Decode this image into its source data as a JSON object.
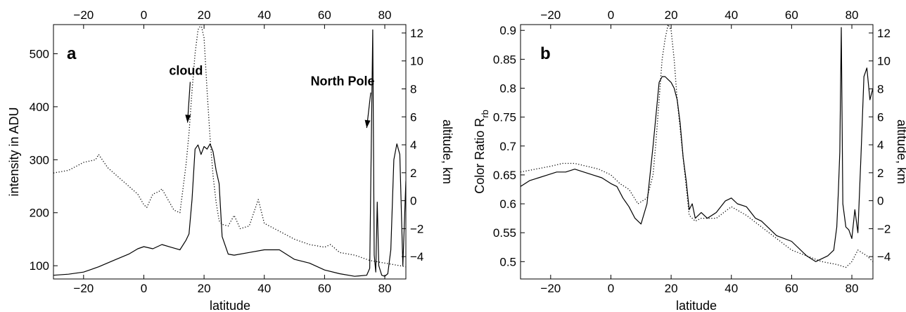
{
  "chart_data": [
    {
      "type": "line",
      "panel_label": "a",
      "xlabel": "latitude",
      "ylabel": "intensity in ADU",
      "y2label": "altitude, km",
      "xlim": [
        -30,
        87
      ],
      "ylim": [
        75,
        555
      ],
      "y2lim": [
        -5.6,
        12.6
      ],
      "xticks": [
        -20,
        0,
        20,
        40,
        60,
        80
      ],
      "xticks_top": [
        -20,
        0,
        20,
        40,
        60,
        80
      ],
      "yticks": [
        100,
        200,
        300,
        400,
        500
      ],
      "y2ticks": [
        -4,
        -2,
        0,
        2,
        4,
        6,
        8,
        10,
        12
      ],
      "annotations": [
        {
          "text": "cloud",
          "text_x": 14,
          "text_y": 460,
          "arrow_to_x": 14.5,
          "arrow_to_y": 370
        },
        {
          "text": "North Pole",
          "text_x": 66,
          "text_y": 440,
          "arrow_to_x": 74,
          "arrow_to_y": 360
        }
      ],
      "series": [
        {
          "style": "solid",
          "axis": "left",
          "x": [
            -30,
            -25,
            -20,
            -15,
            -10,
            -5,
            -2,
            0,
            3,
            6,
            9,
            12,
            14,
            15,
            16,
            17,
            18,
            19,
            20,
            21,
            22,
            23,
            24,
            25,
            26,
            28,
            30,
            35,
            40,
            45,
            50,
            55,
            60,
            65,
            70,
            74,
            75,
            76,
            76.5,
            77,
            77.5,
            78,
            79,
            80,
            81,
            82,
            83,
            84,
            85,
            86,
            87
          ],
          "y": [
            82,
            84,
            88,
            98,
            110,
            122,
            132,
            136,
            132,
            140,
            135,
            130,
            148,
            160,
            225,
            320,
            328,
            310,
            325,
            320,
            330,
            315,
            280,
            255,
            155,
            122,
            120,
            125,
            130,
            130,
            112,
            105,
            92,
            85,
            80,
            82,
            95,
            545,
            120,
            88,
            220,
            100,
            82,
            80,
            85,
            130,
            300,
            330,
            310,
            100,
            260
          ]
        },
        {
          "style": "dotted",
          "axis": "left",
          "x": [
            -30,
            -25,
            -20,
            -16,
            -15,
            -12,
            -8,
            -5,
            -2,
            0,
            1,
            3,
            5,
            6,
            8,
            10,
            12,
            14,
            15,
            16,
            17,
            18,
            19,
            20,
            21,
            22,
            23,
            24,
            25,
            26,
            28,
            30,
            32,
            35,
            38,
            40,
            45,
            50,
            55,
            60,
            62,
            65,
            70,
            75,
            80,
            85,
            87
          ],
          "y": [
            275,
            280,
            295,
            300,
            310,
            285,
            265,
            250,
            235,
            215,
            210,
            235,
            240,
            245,
            225,
            205,
            200,
            290,
            350,
            430,
            500,
            545,
            555,
            530,
            430,
            340,
            270,
            220,
            185,
            178,
            175,
            195,
            170,
            175,
            225,
            180,
            165,
            150,
            140,
            135,
            140,
            125,
            120,
            110,
            105,
            100,
            98
          ]
        }
      ]
    },
    {
      "type": "line",
      "panel_label": "b",
      "xlabel": "latitude",
      "ylabel": "Color Ratio R",
      "ylabel_sub": "rb",
      "y2label": "altitude, km",
      "xlim": [
        -30,
        87
      ],
      "ylim": [
        0.47,
        0.91
      ],
      "y2lim": [
        -5.6,
        12.6
      ],
      "xticks": [
        -20,
        0,
        20,
        40,
        60,
        80
      ],
      "xticks_top": [
        -20,
        0,
        20,
        40,
        60,
        80
      ],
      "yticks": [
        0.5,
        0.55,
        0.6,
        0.65,
        0.7,
        0.75,
        0.8,
        0.85,
        0.9
      ],
      "y2ticks": [
        -4,
        -2,
        0,
        2,
        4,
        6,
        8,
        10,
        12
      ],
      "series": [
        {
          "style": "solid",
          "axis": "left",
          "x": [
            -30,
            -27,
            -24,
            -21,
            -18,
            -15,
            -12,
            -9,
            -6,
            -3,
            0,
            2,
            4,
            6,
            8,
            10,
            12,
            14,
            16,
            17,
            18,
            19,
            20,
            21,
            22,
            23,
            24,
            25,
            26,
            27,
            28,
            30,
            32,
            35,
            38,
            40,
            42,
            45,
            48,
            50,
            55,
            60,
            65,
            68,
            70,
            72,
            74,
            75,
            75.5,
            76,
            76.5,
            77,
            78,
            79,
            80,
            81,
            82,
            83,
            84,
            85,
            86,
            87
          ],
          "y": [
            0.63,
            0.64,
            0.645,
            0.65,
            0.655,
            0.655,
            0.66,
            0.655,
            0.65,
            0.645,
            0.635,
            0.63,
            0.61,
            0.595,
            0.575,
            0.565,
            0.6,
            0.7,
            0.81,
            0.82,
            0.82,
            0.815,
            0.81,
            0.8,
            0.78,
            0.74,
            0.68,
            0.64,
            0.59,
            0.6,
            0.575,
            0.585,
            0.575,
            0.585,
            0.605,
            0.61,
            0.6,
            0.595,
            0.575,
            0.57,
            0.545,
            0.535,
            0.51,
            0.5,
            0.505,
            0.51,
            0.52,
            0.56,
            0.62,
            0.69,
            0.905,
            0.6,
            0.56,
            0.555,
            0.54,
            0.59,
            0.55,
            0.68,
            0.82,
            0.835,
            0.78,
            0.8
          ]
        },
        {
          "style": "dotted",
          "axis": "left",
          "x": [
            -30,
            -25,
            -20,
            -16,
            -12,
            -8,
            -4,
            0,
            3,
            6,
            9,
            12,
            14,
            15,
            16,
            17,
            18,
            19,
            20,
            21,
            22,
            23,
            24,
            25,
            26,
            28,
            30,
            35,
            40,
            45,
            50,
            55,
            60,
            65,
            70,
            75,
            78,
            80,
            82,
            85,
            87
          ],
          "y": [
            0.655,
            0.66,
            0.665,
            0.67,
            0.67,
            0.665,
            0.66,
            0.65,
            0.635,
            0.625,
            0.6,
            0.61,
            0.65,
            0.71,
            0.78,
            0.85,
            0.885,
            0.91,
            0.9,
            0.85,
            0.78,
            0.73,
            0.68,
            0.63,
            0.58,
            0.57,
            0.575,
            0.575,
            0.595,
            0.58,
            0.56,
            0.54,
            0.52,
            0.51,
            0.5,
            0.495,
            0.49,
            0.5,
            0.52,
            0.51,
            0.5
          ]
        }
      ]
    }
  ]
}
